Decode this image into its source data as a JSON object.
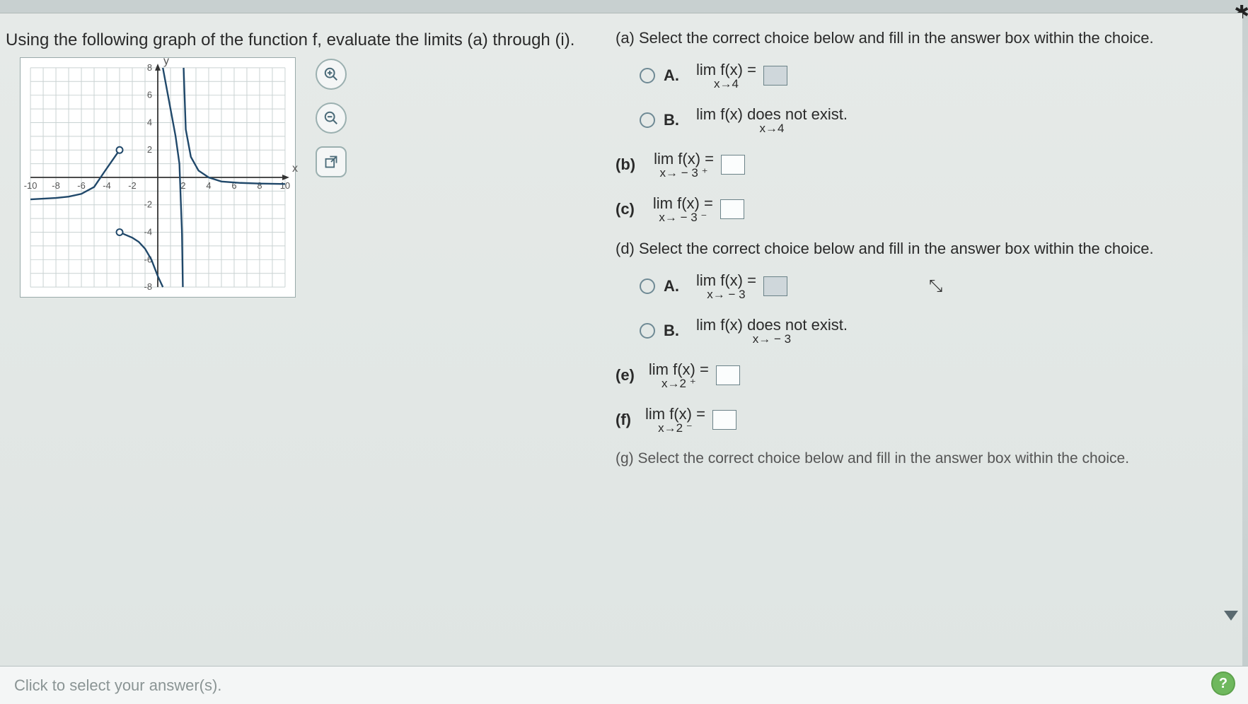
{
  "prompt": "Using the following graph of the function f, evaluate the limits (a) through (i).",
  "graph": {
    "xmin": -10,
    "xmax": 10,
    "ymin": -8,
    "ymax": 8,
    "xticks": [
      -10,
      -8,
      -6,
      -4,
      -2,
      2,
      4,
      6,
      8,
      10
    ],
    "yticks": [
      -8,
      -6,
      -4,
      -2,
      2,
      4,
      6,
      8
    ],
    "xlabel": "x",
    "ylabel": "y",
    "grid_color": "#c9d2d2",
    "axis_color": "#333333",
    "curve_color": "#20486a",
    "background": "#ffffff",
    "open_points": [
      [
        -3,
        2
      ],
      [
        -3,
        -4
      ]
    ],
    "closed_points": [],
    "asymptote_x": 2,
    "left_branch": [
      [
        -10,
        -1.6
      ],
      [
        -9,
        -1.55
      ],
      [
        -8,
        -1.5
      ],
      [
        -7,
        -1.4
      ],
      [
        -6,
        -1.2
      ],
      [
        -5,
        -0.7
      ],
      [
        -4.2,
        0.4
      ],
      [
        -3.6,
        1.2
      ],
      [
        -3,
        2
      ]
    ],
    "mid_branch": [
      [
        -3,
        -4
      ],
      [
        -2.5,
        -4.2
      ],
      [
        -2,
        -4.4
      ],
      [
        -1.5,
        -4.7
      ],
      [
        -1,
        -5.2
      ],
      [
        -0.5,
        -6
      ],
      [
        0,
        -7.2
      ],
      [
        0.4,
        -8
      ]
    ],
    "mid_branch2": [
      [
        0.4,
        8
      ],
      [
        0.7,
        6.5
      ],
      [
        1,
        5
      ],
      [
        1.4,
        3
      ],
      [
        1.7,
        1
      ],
      [
        1.9,
        -4
      ],
      [
        1.97,
        -8
      ]
    ],
    "right_branch": [
      [
        2.03,
        8
      ],
      [
        2.2,
        3.5
      ],
      [
        2.6,
        1.5
      ],
      [
        3.2,
        0.5
      ],
      [
        4,
        0
      ],
      [
        5,
        -0.3
      ],
      [
        6.5,
        -0.4
      ],
      [
        8,
        -0.45
      ],
      [
        10,
        -0.48
      ]
    ]
  },
  "right": {
    "a_prompt": "(a) Select the correct choice below and fill in the answer box within the choice.",
    "a_optA_pre": "A.",
    "a_optA_lim": "lim  f(x) =",
    "a_optA_sub": "x→4",
    "a_optB_pre": "B.",
    "a_optB_lim": "lim  f(x) does not exist.",
    "a_optB_sub": "x→4",
    "b_label": "(b)",
    "b_lim": "lim     f(x) =",
    "b_sub": "x→ − 3 ⁺",
    "c_label": "(c)",
    "c_lim": "lim     f(x) =",
    "c_sub": "x→ − 3 ⁻",
    "d_prompt": "(d) Select the correct choice below and fill in the answer box within the choice.",
    "d_optA_pre": "A.",
    "d_optA_lim": "lim    f(x) =",
    "d_optA_sub": "x→ − 3",
    "d_optB_pre": "B.",
    "d_optB_lim": "lim    f(x) does not exist.",
    "d_optB_sub": "x→ − 3",
    "e_label": "(e)",
    "e_lim": "lim   f(x) =",
    "e_sub": "x→2 ⁺",
    "f_label": "(f)",
    "f_lim": "lim   f(x) =",
    "f_sub": "x→2 ⁻",
    "g_prompt": "(g) Select the correct choice below and fill in the answer box within the choice."
  },
  "footer": "Click to select your answer(s).",
  "help": "?"
}
